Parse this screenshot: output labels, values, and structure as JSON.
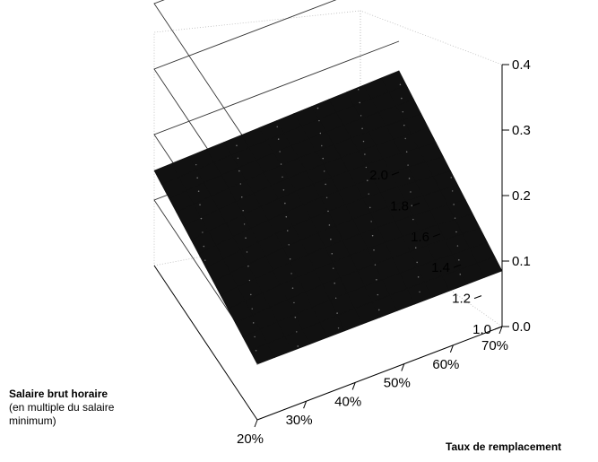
{
  "chart_data": {
    "type": "surface",
    "title": "",
    "zlabel": "",
    "ylabel": "Salaire brut horaire",
    "ylabel_sub": "(en multiple du salaire minimum)",
    "xlabel": "Taux de remplacement",
    "z_ticks": [
      "0.0",
      "0.1",
      "0.2",
      "0.3",
      "0.4"
    ],
    "y_ticks": [
      "1.0",
      "1.2",
      "1.4",
      "1.6",
      "1.8",
      "2.0"
    ],
    "x_ticks": [
      "20%",
      "30%",
      "40%",
      "50%",
      "60%",
      "70%"
    ],
    "zlim": [
      0,
      0.4
    ],
    "ylim": [
      1.0,
      2.0
    ],
    "xlim": [
      0.2,
      0.7
    ],
    "surface_corners": [
      {
        "x": 0.2,
        "y": 1.0,
        "z": 0.085
      },
      {
        "x": 0.7,
        "y": 1.0,
        "z": 0.085
      },
      {
        "x": 0.2,
        "y": 2.0,
        "z": 0.145
      },
      {
        "x": 0.7,
        "y": 2.0,
        "z": 0.155
      }
    ],
    "surface_color": "#111111",
    "grid": true
  }
}
